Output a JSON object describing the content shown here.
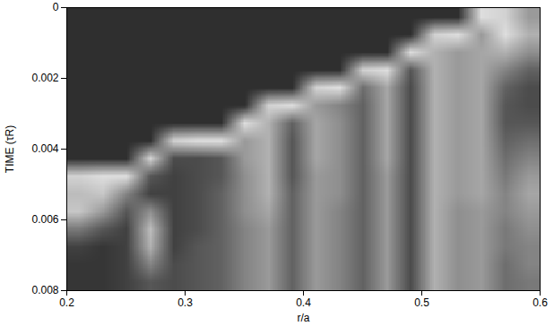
{
  "chart_data": {
    "type": "heatmap",
    "xlabel": "r/a",
    "ylabel": "TIME (τR)",
    "xlim": [
      0.2,
      0.6
    ],
    "ylim": [
      0,
      0.008
    ],
    "xticks": [
      0.2,
      0.3,
      0.4,
      0.5,
      0.6
    ],
    "yticks": [
      0,
      0.002,
      0.004,
      0.006,
      0.008
    ],
    "tick_labels": true,
    "cells": {
      "x": [
        0.21,
        0.23,
        0.25,
        0.27,
        0.29,
        0.31,
        0.33,
        0.35,
        0.37,
        0.39,
        0.41,
        0.43,
        0.45,
        0.47,
        0.49,
        0.51,
        0.53,
        0.55,
        0.57,
        0.59
      ],
      "y": [
        0.00025,
        0.00075,
        0.00125,
        0.00175,
        0.00225,
        0.00275,
        0.00325,
        0.00375,
        0.00425,
        0.00475,
        0.00525,
        0.00575,
        0.00625,
        0.00675,
        0.00725,
        0.00775
      ],
      "zlim": [
        0,
        1
      ],
      "values": [
        [
          0.12,
          0.12,
          0.12,
          0.12,
          0.12,
          0.12,
          0.12,
          0.12,
          0.12,
          0.12,
          0.12,
          0.12,
          0.12,
          0.12,
          0.12,
          0.12,
          0.12,
          0.9,
          0.85,
          0.6
        ],
        [
          0.12,
          0.12,
          0.12,
          0.12,
          0.12,
          0.12,
          0.12,
          0.12,
          0.12,
          0.12,
          0.12,
          0.12,
          0.12,
          0.12,
          0.12,
          0.85,
          0.9,
          0.6,
          0.9,
          0.7
        ],
        [
          0.12,
          0.12,
          0.12,
          0.12,
          0.12,
          0.12,
          0.12,
          0.12,
          0.12,
          0.12,
          0.12,
          0.12,
          0.12,
          0.12,
          0.9,
          0.7,
          0.6,
          0.65,
          0.7,
          0.55
        ],
        [
          0.12,
          0.12,
          0.12,
          0.12,
          0.12,
          0.12,
          0.12,
          0.12,
          0.12,
          0.12,
          0.12,
          0.12,
          0.85,
          0.9,
          0.3,
          0.7,
          0.6,
          0.65,
          0.5,
          0.35
        ],
        [
          0.12,
          0.12,
          0.12,
          0.12,
          0.12,
          0.12,
          0.12,
          0.12,
          0.12,
          0.12,
          0.85,
          0.9,
          0.4,
          0.65,
          0.25,
          0.7,
          0.6,
          0.65,
          0.35,
          0.25
        ],
        [
          0.12,
          0.12,
          0.12,
          0.12,
          0.12,
          0.12,
          0.12,
          0.12,
          0.85,
          0.9,
          0.6,
          0.5,
          0.35,
          0.65,
          0.25,
          0.7,
          0.6,
          0.65,
          0.3,
          0.25
        ],
        [
          0.12,
          0.12,
          0.12,
          0.12,
          0.12,
          0.12,
          0.12,
          0.9,
          0.7,
          0.35,
          0.65,
          0.55,
          0.35,
          0.65,
          0.25,
          0.7,
          0.6,
          0.65,
          0.3,
          0.3
        ],
        [
          0.12,
          0.12,
          0.12,
          0.12,
          0.85,
          0.9,
          0.9,
          0.6,
          0.7,
          0.3,
          0.65,
          0.55,
          0.35,
          0.65,
          0.25,
          0.7,
          0.6,
          0.65,
          0.35,
          0.4
        ],
        [
          0.12,
          0.12,
          0.12,
          0.85,
          0.25,
          0.25,
          0.3,
          0.6,
          0.7,
          0.3,
          0.65,
          0.55,
          0.35,
          0.65,
          0.25,
          0.7,
          0.6,
          0.65,
          0.4,
          0.5
        ],
        [
          0.85,
          0.9,
          0.9,
          0.3,
          0.2,
          0.25,
          0.3,
          0.55,
          0.7,
          0.3,
          0.6,
          0.55,
          0.35,
          0.6,
          0.25,
          0.7,
          0.6,
          0.65,
          0.45,
          0.6
        ],
        [
          0.75,
          0.8,
          0.5,
          0.2,
          0.2,
          0.25,
          0.35,
          0.55,
          0.7,
          0.35,
          0.6,
          0.55,
          0.35,
          0.6,
          0.25,
          0.7,
          0.6,
          0.65,
          0.5,
          0.65
        ],
        [
          0.8,
          0.6,
          0.3,
          0.55,
          0.2,
          0.25,
          0.35,
          0.55,
          0.65,
          0.35,
          0.6,
          0.5,
          0.35,
          0.6,
          0.25,
          0.7,
          0.55,
          0.6,
          0.5,
          0.6
        ],
        [
          0.45,
          0.3,
          0.2,
          0.75,
          0.2,
          0.25,
          0.35,
          0.5,
          0.6,
          0.35,
          0.6,
          0.5,
          0.35,
          0.6,
          0.25,
          0.7,
          0.55,
          0.6,
          0.45,
          0.55
        ],
        [
          0.2,
          0.15,
          0.2,
          0.7,
          0.2,
          0.3,
          0.35,
          0.5,
          0.6,
          0.35,
          0.6,
          0.5,
          0.35,
          0.6,
          0.25,
          0.7,
          0.55,
          0.6,
          0.45,
          0.5
        ],
        [
          0.15,
          0.15,
          0.2,
          0.5,
          0.25,
          0.3,
          0.35,
          0.5,
          0.6,
          0.35,
          0.6,
          0.5,
          0.35,
          0.6,
          0.25,
          0.7,
          0.55,
          0.6,
          0.4,
          0.5
        ],
        [
          0.15,
          0.15,
          0.2,
          0.3,
          0.25,
          0.3,
          0.35,
          0.5,
          0.6,
          0.35,
          0.6,
          0.5,
          0.35,
          0.6,
          0.25,
          0.7,
          0.55,
          0.6,
          0.4,
          0.45
        ]
      ]
    }
  }
}
